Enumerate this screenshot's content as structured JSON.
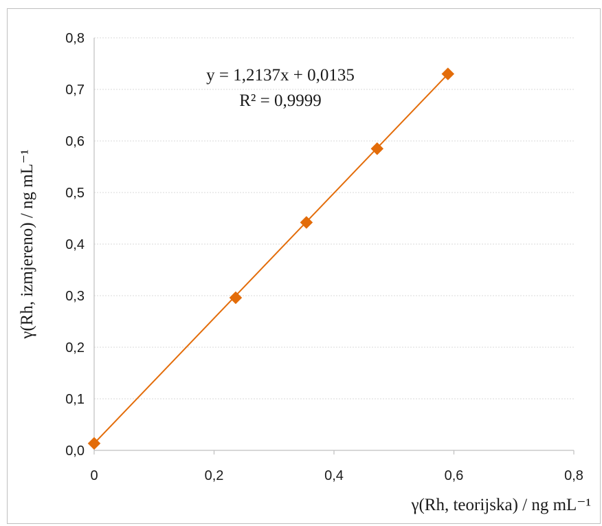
{
  "chart_data": {
    "type": "scatter",
    "xlabel": "γ(Rh, teorijska) / ng mL⁻¹",
    "ylabel": "γ(Rh, izmjereno) / ng mL⁻¹",
    "xlim": [
      0,
      0.8
    ],
    "ylim": [
      0,
      0.8
    ],
    "x_ticks": [
      "0",
      "0,2",
      "0,4",
      "0,6",
      "0,8"
    ],
    "y_ticks": [
      "0,0",
      "0,1",
      "0,2",
      "0,3",
      "0,4",
      "0,5",
      "0,6",
      "0,7",
      "0,8"
    ],
    "grid": true,
    "series": [
      {
        "x": [
          0,
          0.236,
          0.354,
          0.472,
          0.59
        ],
        "y": [
          0.0135,
          0.296,
          0.442,
          0.585,
          0.73
        ],
        "color": "#E36C09",
        "marker": "diamond"
      }
    ],
    "trendline": {
      "slope": 1.2137,
      "intercept": 0.0135,
      "x_range": [
        0,
        0.59
      ],
      "color": "#E36C09",
      "equation": "y = 1,2137x + 0,0135",
      "r2": "R² = 0,9999"
    }
  }
}
